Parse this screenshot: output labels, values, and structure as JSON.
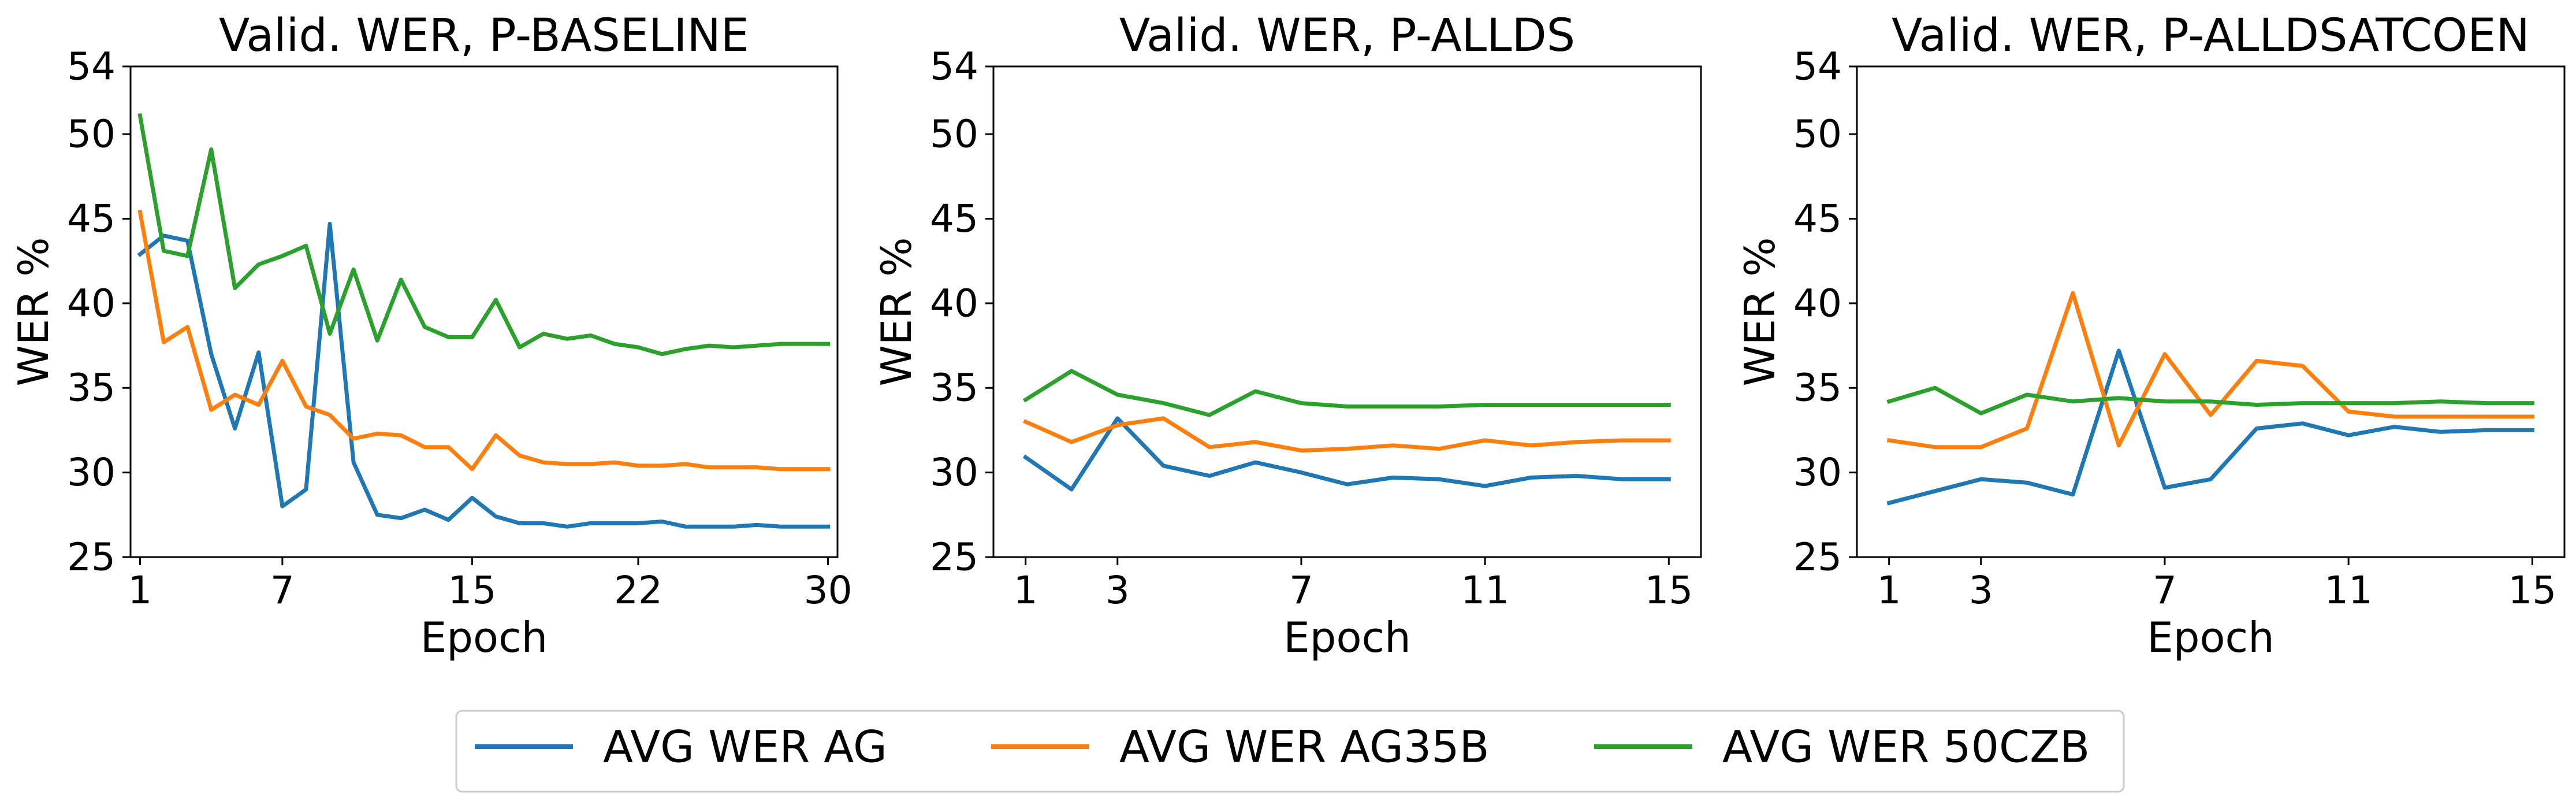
{
  "chart_data": [
    {
      "type": "line",
      "title": "Valid. WER, P-BASELINE",
      "xlabel": "Epoch",
      "ylabel": "WER %",
      "xlim": [
        0.6,
        30.4
      ],
      "ylim": [
        25,
        54
      ],
      "xticks": [
        1,
        7,
        15,
        22,
        30
      ],
      "yticks": [
        25,
        30,
        35,
        40,
        45,
        50,
        54
      ],
      "x": [
        1,
        2,
        3,
        4,
        5,
        6,
        7,
        8,
        9,
        10,
        11,
        12,
        13,
        14,
        15,
        16,
        17,
        18,
        19,
        20,
        21,
        22,
        23,
        24,
        25,
        26,
        27,
        28,
        29,
        30
      ],
      "series": [
        {
          "name": "AVG WER AG",
          "color": "#1f77b4",
          "values": [
            42.9,
            44.0,
            43.7,
            37.0,
            32.6,
            37.1,
            28.0,
            29.0,
            44.7,
            30.6,
            27.5,
            27.3,
            27.8,
            27.2,
            28.5,
            27.4,
            27.0,
            27.0,
            26.8,
            27.0,
            27.0,
            27.0,
            27.1,
            26.8,
            26.8,
            26.8,
            26.9,
            26.8,
            26.8,
            26.8
          ]
        },
        {
          "name": "AVG WER AG35B",
          "color": "#ff7f0e",
          "values": [
            45.4,
            37.7,
            38.6,
            33.7,
            34.6,
            34.0,
            36.6,
            33.9,
            33.4,
            32.0,
            32.3,
            32.2,
            31.5,
            31.5,
            30.2,
            32.2,
            31.0,
            30.6,
            30.5,
            30.5,
            30.6,
            30.4,
            30.4,
            30.5,
            30.3,
            30.3,
            30.3,
            30.2,
            30.2,
            30.2
          ]
        },
        {
          "name": "AVG WER 50CZB",
          "color": "#2ca02c",
          "values": [
            51.1,
            43.1,
            42.8,
            49.1,
            40.9,
            42.3,
            42.8,
            43.4,
            38.2,
            42.0,
            37.8,
            41.4,
            38.6,
            38.0,
            38.0,
            40.2,
            37.4,
            38.2,
            37.9,
            38.1,
            37.6,
            37.4,
            37.0,
            37.3,
            37.5,
            37.4,
            37.5,
            37.6,
            37.6,
            37.6
          ]
        }
      ]
    },
    {
      "type": "line",
      "title": "Valid. WER, P-ALLDS",
      "xlabel": "Epoch",
      "ylabel": "WER %",
      "xlim": [
        0.3,
        15.7
      ],
      "ylim": [
        25,
        54
      ],
      "xticks": [
        1,
        3,
        7,
        11,
        15
      ],
      "yticks": [
        25,
        30,
        35,
        40,
        45,
        50,
        54
      ],
      "x": [
        1,
        2,
        3,
        4,
        5,
        6,
        7,
        8,
        9,
        10,
        11,
        12,
        13,
        14,
        15
      ],
      "series": [
        {
          "name": "AVG WER AG",
          "color": "#1f77b4",
          "values": [
            30.9,
            29.0,
            33.2,
            30.4,
            29.8,
            30.6,
            30.0,
            29.3,
            29.7,
            29.6,
            29.2,
            29.7,
            29.8,
            29.6,
            29.6
          ]
        },
        {
          "name": "AVG WER AG35B",
          "color": "#ff7f0e",
          "values": [
            33.0,
            31.8,
            32.8,
            33.2,
            31.5,
            31.8,
            31.3,
            31.4,
            31.6,
            31.4,
            31.9,
            31.6,
            31.8,
            31.9,
            31.9
          ]
        },
        {
          "name": "AVG WER 50CZB",
          "color": "#2ca02c",
          "values": [
            34.3,
            36.0,
            34.6,
            34.1,
            33.4,
            34.8,
            34.1,
            33.9,
            33.9,
            33.9,
            34.0,
            34.0,
            34.0,
            34.0,
            34.0
          ]
        }
      ]
    },
    {
      "type": "line",
      "title": "Valid. WER, P-ALLDSATCOEN",
      "xlabel": "Epoch",
      "ylabel": "WER %",
      "xlim": [
        0.3,
        15.7
      ],
      "ylim": [
        25,
        54
      ],
      "xticks": [
        1,
        3,
        7,
        11,
        15
      ],
      "yticks": [
        25,
        30,
        35,
        40,
        45,
        50,
        54
      ],
      "x": [
        1,
        2,
        3,
        4,
        5,
        6,
        7,
        8,
        9,
        10,
        11,
        12,
        13,
        14,
        15
      ],
      "series": [
        {
          "name": "AVG WER AG",
          "color": "#1f77b4",
          "values": [
            28.2,
            28.9,
            29.6,
            29.4,
            28.7,
            37.2,
            29.1,
            29.6,
            32.6,
            32.9,
            32.2,
            32.7,
            32.4,
            32.5,
            32.5
          ]
        },
        {
          "name": "AVG WER AG35B",
          "color": "#ff7f0e",
          "values": [
            31.9,
            31.5,
            31.5,
            32.6,
            40.6,
            31.6,
            37.0,
            33.4,
            36.6,
            36.3,
            33.6,
            33.3,
            33.3,
            33.3,
            33.3
          ]
        },
        {
          "name": "AVG WER 50CZB",
          "color": "#2ca02c",
          "values": [
            34.2,
            35.0,
            33.5,
            34.6,
            34.2,
            34.4,
            34.2,
            34.2,
            34.0,
            34.1,
            34.1,
            34.1,
            34.2,
            34.1,
            34.1
          ]
        }
      ]
    }
  ],
  "legend": {
    "placement": "bottom-center",
    "items": [
      {
        "label": "AVG WER AG",
        "color": "#1f77b4"
      },
      {
        "label": "AVG WER AG35B",
        "color": "#ff7f0e"
      },
      {
        "label": "AVG WER 50CZB",
        "color": "#2ca02c"
      }
    ]
  }
}
